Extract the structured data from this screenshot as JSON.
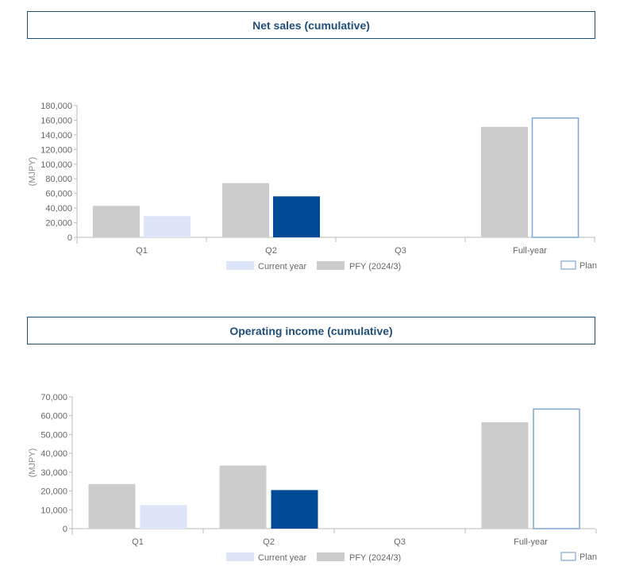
{
  "colors": {
    "pfy": "#cccccc",
    "current_light": "#dce6f8",
    "current_dark": "#004b97",
    "plan_stroke": "#7fa7d1",
    "title": "#1f4e79",
    "axis": "#bbbbbb",
    "text": "#666666"
  },
  "chart_data": [
    {
      "type": "bar",
      "title": "Net sales (cumulative)",
      "ylabel": "(MJPY)",
      "ylim": [
        0,
        180000
      ],
      "yticks": [
        "0",
        "20,000",
        "40,000",
        "60,000",
        "80,000",
        "100,000",
        "120,000",
        "140,000",
        "160,000",
        "180,000"
      ],
      "categories": [
        "Q1",
        "Q2",
        "Q3",
        "Full-year"
      ],
      "series": [
        {
          "name": "PFY (2024/3)",
          "values": [
            43000,
            74000,
            null,
            151000
          ]
        },
        {
          "name": "Current year",
          "values": [
            29000,
            56000,
            null,
            null
          ]
        },
        {
          "name": "Plan",
          "values": [
            null,
            null,
            null,
            163000
          ]
        }
      ],
      "legend": {
        "current": "Current year",
        "pfy": "PFY (2024/3)",
        "plan": "Plan"
      }
    },
    {
      "type": "bar",
      "title": "Operating income (cumulative)",
      "ylabel": "(MJPY)",
      "ylim": [
        0,
        70000
      ],
      "yticks": [
        "0",
        "10,000",
        "20,000",
        "30,000",
        "40,000",
        "50,000",
        "60,000",
        "70,000"
      ],
      "categories": [
        "Q1",
        "Q2",
        "Q3",
        "Full-year"
      ],
      "series": [
        {
          "name": "PFY (2024/3)",
          "values": [
            23700,
            33500,
            null,
            56500
          ]
        },
        {
          "name": "Current year",
          "values": [
            12500,
            20500,
            null,
            null
          ]
        },
        {
          "name": "Plan",
          "values": [
            null,
            null,
            null,
            63500
          ]
        }
      ],
      "legend": {
        "current": "Current year",
        "pfy": "PFY (2024/3)",
        "plan": "Plan"
      }
    }
  ]
}
